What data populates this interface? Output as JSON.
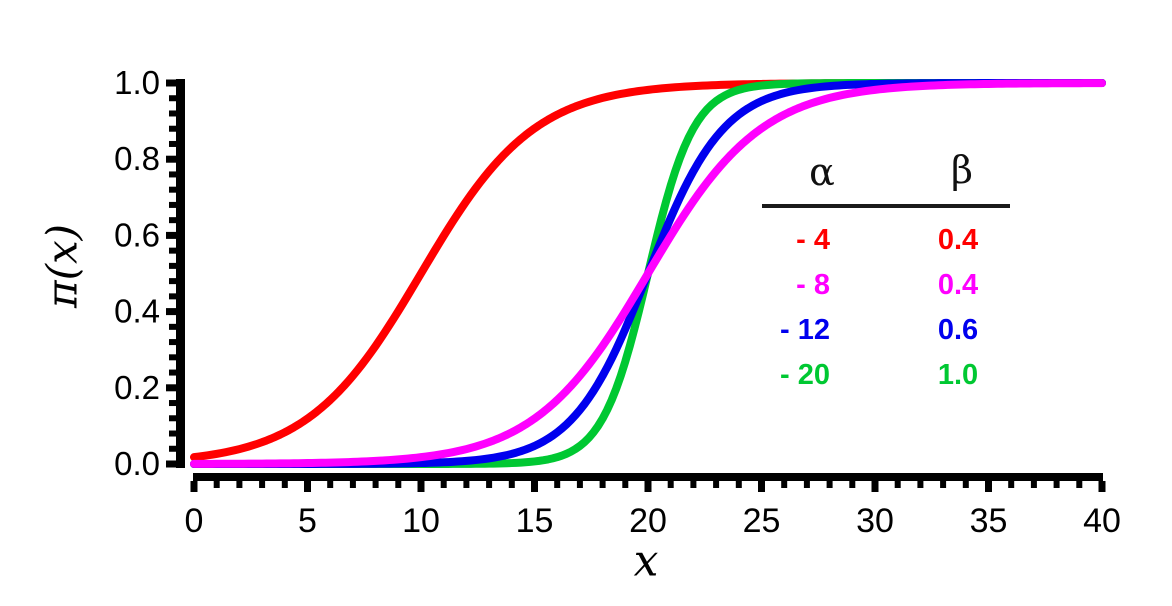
{
  "chart_data": {
    "type": "line",
    "title": "",
    "xlabel": "x",
    "ylabel": "π(x)",
    "xlim": [
      0,
      40
    ],
    "ylim": [
      0,
      1
    ],
    "grid": false,
    "legend_position": "upper-right-inside",
    "curve_family": "logistic: pi(x) = exp(alpha + beta*x) / (1 + exp(alpha + beta*x))",
    "x_ticks_major": [
      0,
      5,
      10,
      15,
      20,
      25,
      30,
      35,
      40
    ],
    "x_tick_labels": [
      "0",
      "5",
      "10",
      "15",
      "20",
      "25",
      "30",
      "35",
      "40"
    ],
    "x_minor_step": 1,
    "y_ticks_major": [
      0.0,
      0.2,
      0.4,
      0.6,
      0.8,
      1.0
    ],
    "y_tick_labels": [
      "0.0",
      "0.2",
      "0.4",
      "0.6",
      "0.8",
      "1.0"
    ],
    "y_minor_step": 0.04,
    "legend": {
      "alpha_header": "α",
      "beta_header": "β"
    },
    "x_samples": [
      0,
      2,
      4,
      6,
      8,
      10,
      12,
      14,
      16,
      18,
      20,
      22,
      24,
      26,
      28,
      30,
      32,
      34,
      36,
      38,
      40
    ],
    "series": [
      {
        "name": "alpha -4, beta 0.4",
        "alpha": -4,
        "beta": 0.4,
        "alpha_label": "- 4",
        "beta_label": "0.4",
        "color": "#ff0000",
        "z": 1,
        "y": [
          0.018,
          0.039,
          0.083,
          0.168,
          0.31,
          0.5,
          0.69,
          0.832,
          0.917,
          0.961,
          0.982,
          0.992,
          0.996,
          0.998,
          0.999,
          1.0,
          1.0,
          1.0,
          1.0,
          1.0,
          1.0
        ]
      },
      {
        "name": "alpha -8, beta 0.4",
        "alpha": -8,
        "beta": 0.4,
        "alpha_label": "- 8",
        "beta_label": "0.4",
        "color": "#ff00ff",
        "z": 4,
        "y": [
          0.0,
          0.001,
          0.002,
          0.004,
          0.008,
          0.018,
          0.039,
          0.083,
          0.168,
          0.31,
          0.5,
          0.69,
          0.832,
          0.917,
          0.961,
          0.982,
          0.992,
          0.996,
          0.998,
          0.999,
          1.0
        ]
      },
      {
        "name": "alpha -12, beta 0.6",
        "alpha": -12,
        "beta": 0.6,
        "alpha_label": "- 12",
        "beta_label": "0.6",
        "color": "#0000ee",
        "z": 3,
        "y": [
          0.0,
          0.0,
          0.0,
          0.0,
          0.001,
          0.002,
          0.008,
          0.027,
          0.083,
          0.231,
          0.5,
          0.769,
          0.917,
          0.973,
          0.992,
          0.998,
          0.999,
          1.0,
          1.0,
          1.0,
          1.0
        ]
      },
      {
        "name": "alpha -20, beta 1.0",
        "alpha": -20,
        "beta": 1.0,
        "alpha_label": "- 20",
        "beta_label": "1.0",
        "color": "#00c832",
        "z": 2,
        "y": [
          0.0,
          0.0,
          0.0,
          0.0,
          0.0,
          0.0,
          0.0,
          0.002,
          0.018,
          0.119,
          0.5,
          0.881,
          0.982,
          0.998,
          1.0,
          1.0,
          1.0,
          1.0,
          1.0,
          1.0,
          1.0
        ]
      }
    ]
  }
}
